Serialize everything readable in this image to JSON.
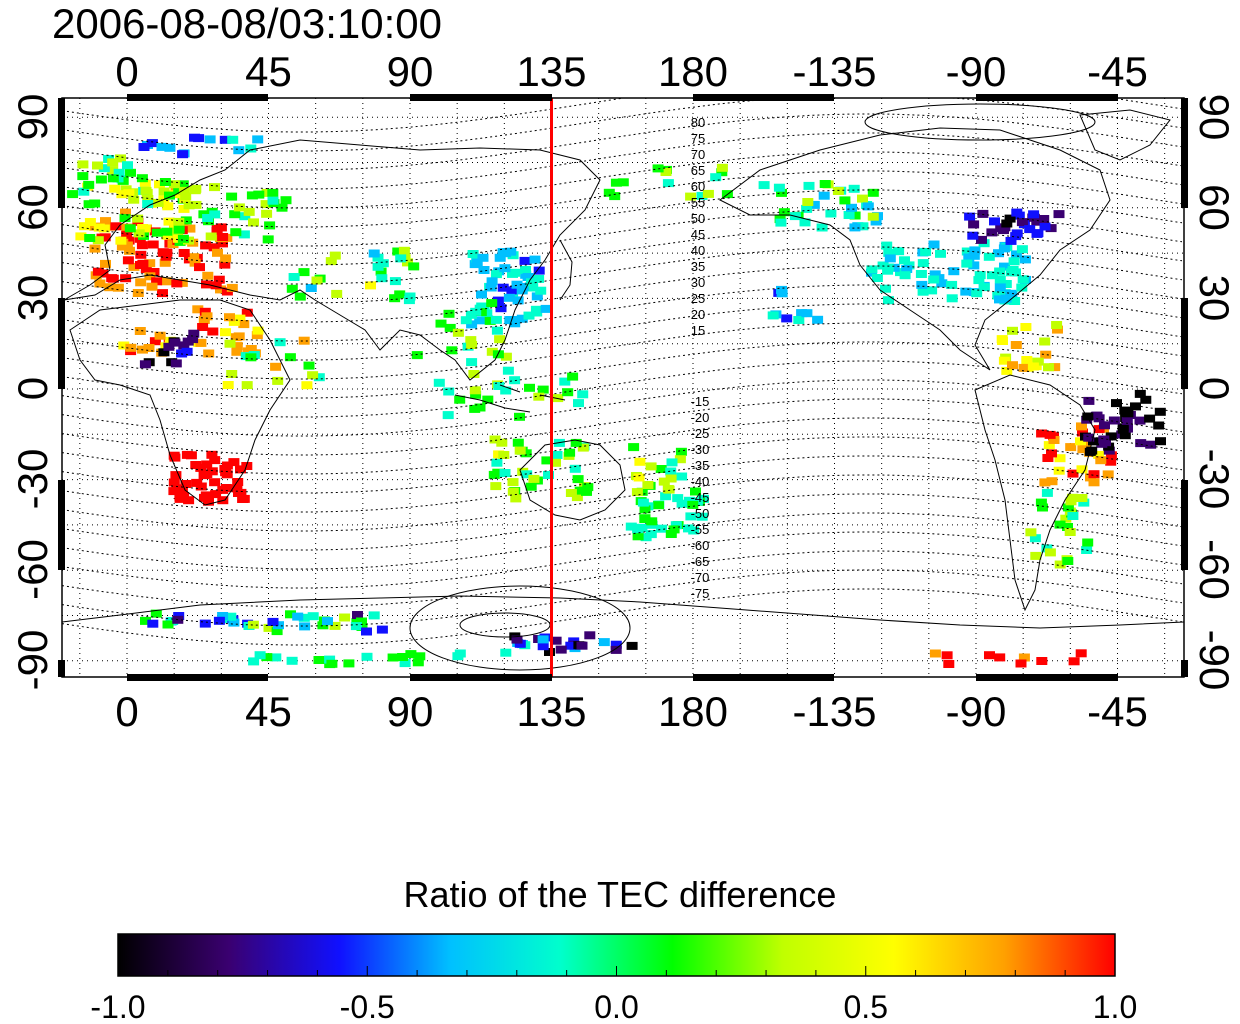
{
  "timestamp": "2006-08-08/03:10:00",
  "map": {
    "lon_ticks": [
      "0",
      "45",
      "90",
      "135",
      "180",
      "-135",
      "-90",
      "-45"
    ],
    "lat_ticks": [
      "90",
      "60",
      "30",
      "0",
      "-30",
      "-60",
      "-90"
    ],
    "marker_longitude": "135",
    "contour_labels_north": [
      "80",
      "75",
      "70",
      "65",
      "60",
      "55",
      "50",
      "45",
      "40",
      "35",
      "30",
      "25",
      "20",
      "15"
    ],
    "contour_labels_south": [
      "-15",
      "-20",
      "-25",
      "-30",
      "-35",
      "-40",
      "-45",
      "-50",
      "-55",
      "-60",
      "-65",
      "-70",
      "-75"
    ]
  },
  "colorbar": {
    "title": "Ratio of the TEC difference",
    "tick_labels": [
      "-1.0",
      "-0.5",
      "0.0",
      "0.5",
      "1.0"
    ],
    "stops": [
      "#000000",
      "#3a0070",
      "#1010ff",
      "#00c0ff",
      "#00ffcc",
      "#00ff00",
      "#c0ff00",
      "#ffff00",
      "#ffa000",
      "#ff0000"
    ]
  },
  "colors": {
    "marker_line": "#ff0000",
    "grid": "#000000"
  }
}
